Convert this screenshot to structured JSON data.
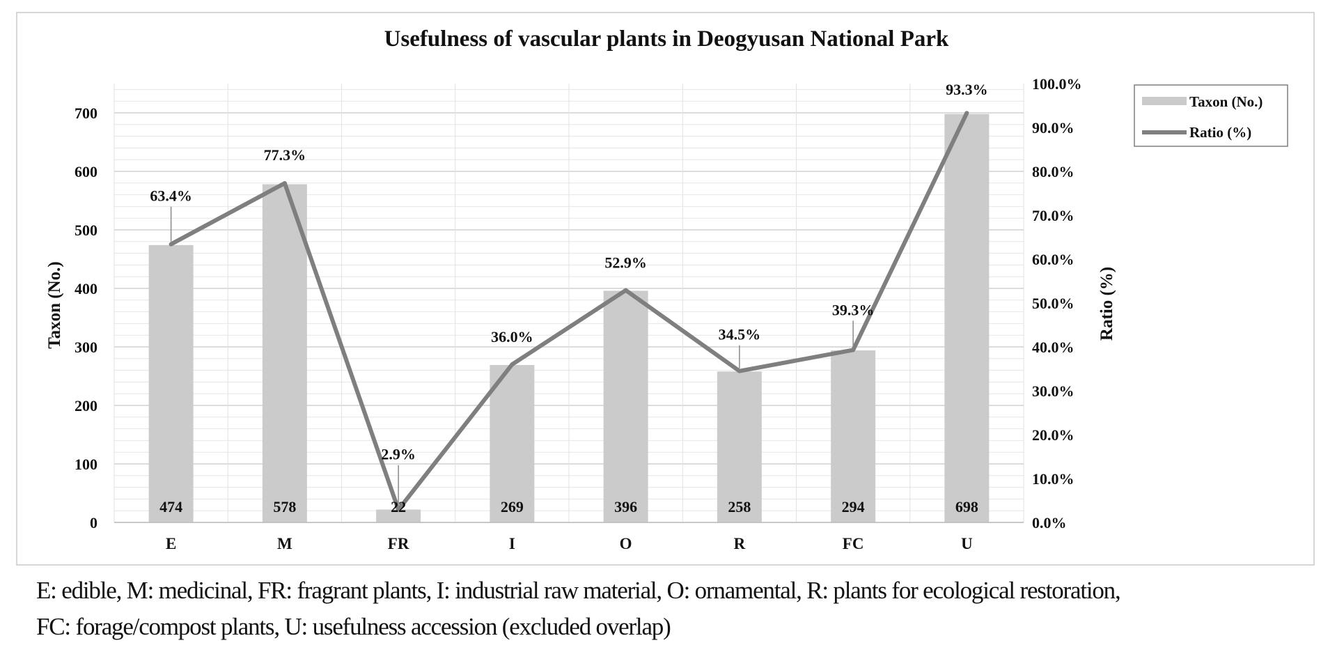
{
  "chart_data": {
    "type": "bar",
    "title": "Usefulness of vascular plants in Deogyusan National Park",
    "ylabel": "Taxon (No.)",
    "y2label": "Ratio (%)",
    "xlabel": "",
    "categories": [
      "E",
      "M",
      "FR",
      "I",
      "O",
      "R",
      "FC",
      "U"
    ],
    "series": [
      {
        "name": "Taxon (No.)",
        "type": "bar",
        "axis": "left",
        "values": [
          474,
          578,
          22,
          269,
          396,
          258,
          294,
          698
        ],
        "labels": [
          "474",
          "578",
          "22",
          "269",
          "396",
          "258",
          "294",
          "698"
        ],
        "color": "#cbcbcb"
      },
      {
        "name": "Ratio (%)",
        "type": "line",
        "axis": "right",
        "values": [
          63.4,
          77.3,
          2.9,
          36.0,
          52.9,
          34.5,
          39.3,
          93.3
        ],
        "labels": [
          "63.4%",
          "77.3%",
          "2.9%",
          "36.0%",
          "52.9%",
          "34.5%",
          "39.3%",
          "93.3%"
        ],
        "color": "#7f7f7f"
      }
    ],
    "ylim": [
      0,
      750
    ],
    "y2lim": [
      0,
      100
    ],
    "yticks": [
      0,
      100,
      200,
      300,
      400,
      500,
      600,
      700
    ],
    "ytick_labels": [
      "0",
      "100",
      "200",
      "300",
      "400",
      "500",
      "600",
      "700"
    ],
    "y2ticks": [
      0,
      10,
      20,
      30,
      40,
      50,
      60,
      70,
      80,
      90,
      100
    ],
    "y2tick_labels": [
      "0.0%",
      "10.0%",
      "20.0%",
      "30.0%",
      "40.0%",
      "50.0%",
      "60.0%",
      "70.0%",
      "80.0%",
      "90.0%",
      "100.0%"
    ],
    "grid": true,
    "legend_position": "top-right"
  },
  "caption": {
    "line1": "E: edible, M: medicinal, FR: fragrant plants, I: industrial raw material, O: ornamental, R: plants for ecological restoration,",
    "line2": "FC: forage/compost plants, U: usefulness accession (excluded overlap)"
  }
}
